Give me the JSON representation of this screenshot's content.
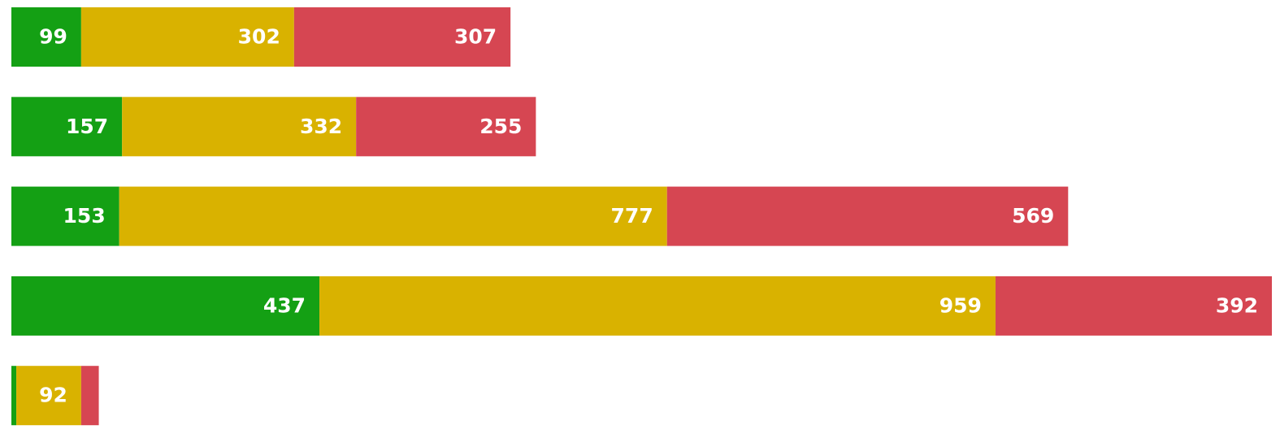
{
  "chart_data": {
    "type": "stacked-bar-horizontal",
    "series": [
      {
        "color": "#14a014",
        "values": [
          99,
          157,
          153,
          437,
          7
        ]
      },
      {
        "color": "#d9b200",
        "values": [
          302,
          332,
          777,
          959,
          92
        ]
      },
      {
        "color": "#d64652",
        "values": [
          307,
          255,
          569,
          392,
          25
        ]
      }
    ]
  }
}
